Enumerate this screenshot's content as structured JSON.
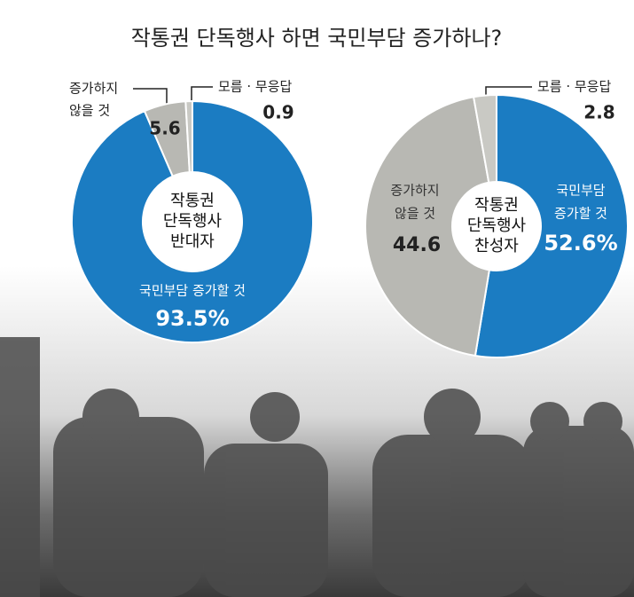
{
  "title": "작통권 단독행사 하면 국민부담 증가하나?",
  "chart_data": [
    {
      "type": "donut",
      "center_label": [
        "작통권",
        "단독행사",
        "반대자"
      ],
      "categories": [
        [
          "국민부담 증가할 것"
        ],
        [
          "증가하지",
          "않을 것"
        ],
        [
          "모름 · 무응답"
        ]
      ],
      "values": [
        93.5,
        5.6,
        0.9
      ],
      "value_labels": [
        "93.5%",
        "5.6",
        "0.9"
      ],
      "colors": [
        "#1b7cc2",
        "#b8b8b3",
        "#c9c9c4"
      ]
    },
    {
      "type": "donut",
      "center_label": [
        "작통권",
        "단독행사",
        "찬성자"
      ],
      "categories": [
        [
          "국민부담",
          "증가할 것"
        ],
        [
          "증가하지",
          "않을 것"
        ],
        [
          "모름 · 무응답"
        ]
      ],
      "values": [
        52.6,
        44.6,
        2.8
      ],
      "value_labels": [
        "52.6%",
        "44.6",
        "2.8"
      ],
      "colors": [
        "#1b7cc2",
        "#b8b8b3",
        "#c9c9c4"
      ]
    }
  ]
}
